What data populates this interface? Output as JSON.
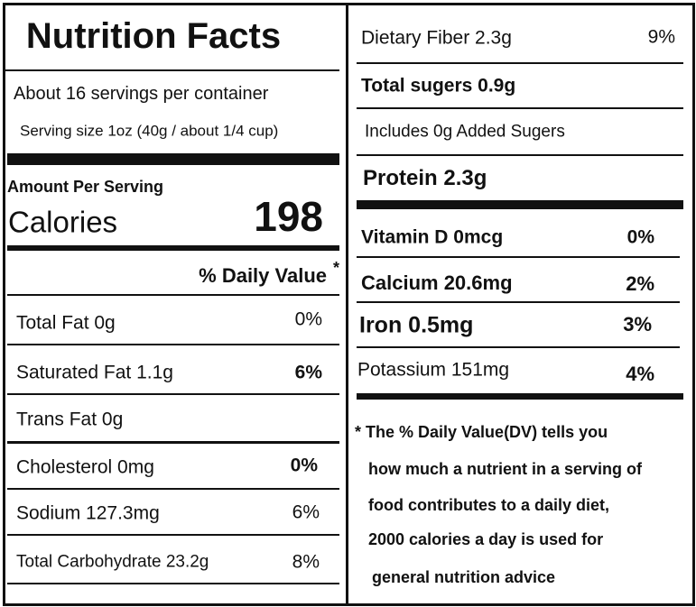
{
  "left": {
    "title": "Nutrition Facts",
    "servings": "About 16 servings per container",
    "serving_size": "Serving size 1oz (40g / about 1/4 cup)",
    "amount_per_serving": "Amount Per Serving",
    "calories_label": "Calories",
    "calories_value": "198",
    "daily_value_header": "% Daily Value",
    "daily_value_mark": "*",
    "rows": [
      {
        "label": "Total Fat  0g",
        "dv": "0%"
      },
      {
        "label": "Saturated Fat 1.1g",
        "dv": "6%"
      },
      {
        "label": "Trans Fat 0g"
      },
      {
        "label": "Cholesterol  0mg",
        "dv": "0%"
      },
      {
        "label": "Sodium  127.3mg",
        "dv": "6%"
      },
      {
        "label": "Total Carbohydrate  23.2g",
        "dv": "8%"
      }
    ]
  },
  "right": {
    "rows": [
      {
        "label": "Dietary Fiber  2.3g",
        "dv": "9%"
      },
      {
        "label": "Total sugers  0.9g"
      },
      {
        "label": "Includes 0g Added Sugers"
      },
      {
        "label": "Protein  2.3g"
      },
      {
        "label": "Vitamin D 0mcg",
        "dv": "0%"
      },
      {
        "label": "Calcium  20.6mg",
        "dv": "2%"
      },
      {
        "label": "Iron 0.5mg",
        "dv": "3%"
      },
      {
        "label": "Potassium  151mg",
        "dv": "4%"
      }
    ],
    "footnote": [
      "* The % Daily Value(DV)  tells you",
      "how much a nutrient in a serving of",
      "food contributes to a daily diet,",
      "2000 calories a day is used for",
      "general nutrition advice"
    ]
  }
}
